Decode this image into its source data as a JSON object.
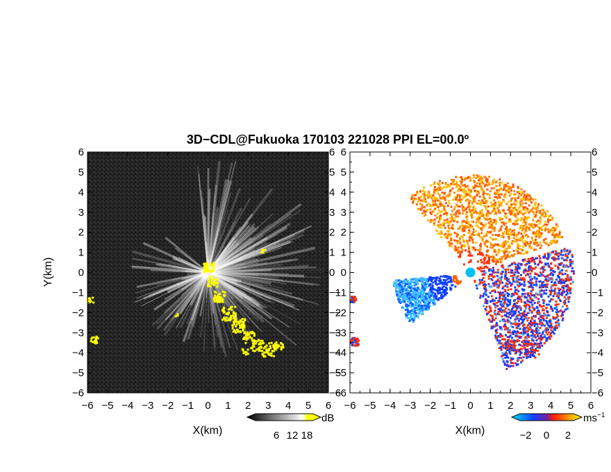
{
  "title": "3D−CDL@Fukuoka 170103 221028 PPI EL=00.0º",
  "chart_data": [
    {
      "type": "heatmap",
      "panel": "left",
      "quantity": "backscatter",
      "xlabel": "X(km)",
      "ylabel": "Y(km)",
      "xlim": [
        -6,
        6
      ],
      "ylim": [
        -6,
        6
      ],
      "xticks": [
        -6,
        -5,
        -4,
        -3,
        -2,
        -1,
        0,
        1,
        2,
        3,
        4,
        5,
        6
      ],
      "yticks": [
        -6,
        -5,
        -4,
        -3,
        -2,
        -1,
        0,
        1,
        2,
        3,
        4,
        5,
        6
      ],
      "colorbar": {
        "ticks": [
          6,
          12,
          18
        ],
        "unit": "dB",
        "colors": [
          "#000000",
          "#ffffff",
          "#ffff00"
        ]
      },
      "background_color": "#262626",
      "highlight_color": "#ffff00"
    },
    {
      "type": "heatmap",
      "panel": "right",
      "quantity": "doppler velocity",
      "xlabel": "X(km)",
      "xlim": [
        -6,
        6
      ],
      "ylim": [
        -6,
        6
      ],
      "xticks": [
        -6,
        -5,
        -4,
        -3,
        -2,
        -1,
        0,
        1,
        2,
        3,
        4,
        5,
        6
      ],
      "yticks": [
        -6,
        -5,
        -4,
        -3,
        -2,
        -1,
        0,
        1,
        2,
        3,
        4,
        5,
        6
      ],
      "colorbar": {
        "ticks": [
          -2,
          0,
          2
        ],
        "unit": "ms",
        "unit_exp": "−1",
        "colors": [
          "#00d0ff",
          "#2040ff",
          "#ff2000",
          "#ffff00"
        ]
      },
      "background_color": "#ffffff"
    }
  ]
}
